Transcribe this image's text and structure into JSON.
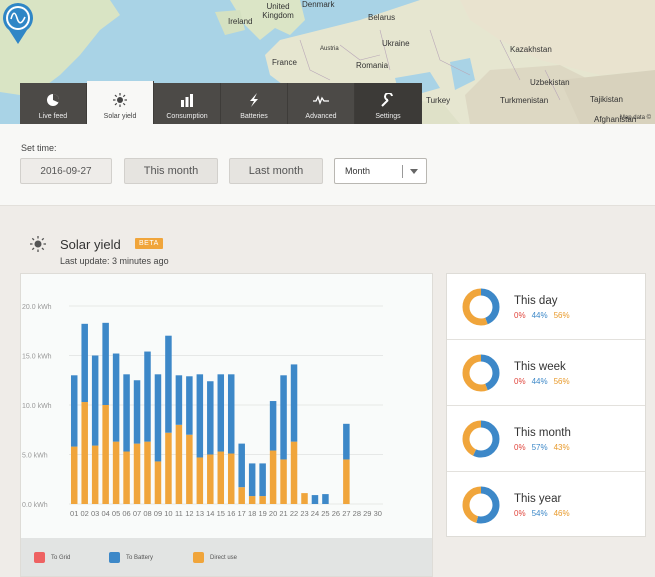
{
  "map": {
    "labels": [
      "Denmark",
      "United Kingdom",
      "Ireland",
      "Belarus",
      "Ukraine",
      "Kazakhstan",
      "Austria",
      "France",
      "Romania",
      "Uzbekistan",
      "Turkmenistan",
      "Turkey",
      "Tajikistan",
      "Afghanistan"
    ],
    "credit": "Map data ©"
  },
  "tabs": [
    {
      "label": "Live feed",
      "icon": "pie-chart-icon"
    },
    {
      "label": "Solar yield",
      "icon": "sun-icon"
    },
    {
      "label": "Consumption",
      "icon": "bar-chart-icon"
    },
    {
      "label": "Batteries",
      "icon": "lightning-icon"
    },
    {
      "label": "Advanced",
      "icon": "waveform-icon"
    },
    {
      "label": "Settings",
      "icon": "wrench-icon"
    }
  ],
  "time": {
    "set_label": "Set time:",
    "date": "2016-09-27",
    "this_month": "This month",
    "last_month": "Last month",
    "select_value": "Month"
  },
  "section": {
    "title": "Solar yield",
    "badge": "BETA",
    "last_update": "Last update: 3 minutes ago"
  },
  "legend": [
    {
      "label": "To Grid",
      "color": "#ee6262"
    },
    {
      "label": "To Battery",
      "color": "#3d88c8"
    },
    {
      "label": "Direct use",
      "color": "#f0a53b"
    }
  ],
  "stats": [
    {
      "label": "This day",
      "grid": "0%",
      "battery": "44%",
      "direct": "56%",
      "f_grid": 0,
      "f_battery": 0.44,
      "f_direct": 0.56
    },
    {
      "label": "This week",
      "grid": "0%",
      "battery": "44%",
      "direct": "56%",
      "f_grid": 0,
      "f_battery": 0.44,
      "f_direct": 0.56
    },
    {
      "label": "This month",
      "grid": "0%",
      "battery": "57%",
      "direct": "43%",
      "f_grid": 0,
      "f_battery": 0.57,
      "f_direct": 0.43
    },
    {
      "label": "This year",
      "grid": "0%",
      "battery": "54%",
      "direct": "46%",
      "f_grid": 0,
      "f_battery": 0.54,
      "f_direct": 0.46
    }
  ],
  "colors": {
    "grid": "#ee6262",
    "battery": "#3d88c8",
    "direct": "#f0a53b",
    "active_tab": "#f8f8f6",
    "tab": "#4c4a47"
  },
  "chart_data": {
    "type": "bar",
    "stacked": true,
    "categories": [
      "01",
      "02",
      "03",
      "04",
      "05",
      "06",
      "07",
      "08",
      "09",
      "10",
      "11",
      "12",
      "13",
      "14",
      "15",
      "16",
      "17",
      "18",
      "19",
      "20",
      "21",
      "22",
      "23",
      "24",
      "25",
      "26",
      "27",
      "28",
      "29",
      "30"
    ],
    "series": [
      {
        "name": "To Grid",
        "values": [
          0,
          0,
          0,
          0,
          0,
          0,
          0,
          0,
          0,
          0,
          0,
          0,
          0,
          0,
          0,
          0,
          0,
          0,
          0,
          0,
          0,
          0,
          0,
          0,
          0,
          0,
          0,
          0,
          0,
          0
        ]
      },
      {
        "name": "Direct use",
        "values": [
          5.8,
          10.3,
          5.9,
          10.0,
          6.3,
          5.3,
          6.1,
          6.3,
          4.3,
          7.2,
          8.0,
          7.0,
          4.7,
          5.0,
          5.3,
          5.1,
          1.7,
          0.8,
          0.8,
          5.4,
          4.5,
          6.3,
          1.1,
          0,
          0,
          0,
          4.5,
          0,
          0,
          0
        ]
      },
      {
        "name": "To Battery",
        "values": [
          7.2,
          7.9,
          9.1,
          8.3,
          8.9,
          7.8,
          6.4,
          9.1,
          8.8,
          9.8,
          5.0,
          5.9,
          8.4,
          7.4,
          7.8,
          8.0,
          4.4,
          3.3,
          3.3,
          5.0,
          8.5,
          7.8,
          0,
          0.9,
          1.0,
          0,
          3.6,
          0,
          0,
          0
        ]
      }
    ],
    "ylabel": "kWh",
    "ylim": [
      0,
      20
    ],
    "yticks": [
      "20.0 kWh",
      "15.0 kWh",
      "10.0 kWh",
      "5.0 kWh",
      "0.0 kWh"
    ],
    "legend_position": "bottom",
    "grid": true
  }
}
